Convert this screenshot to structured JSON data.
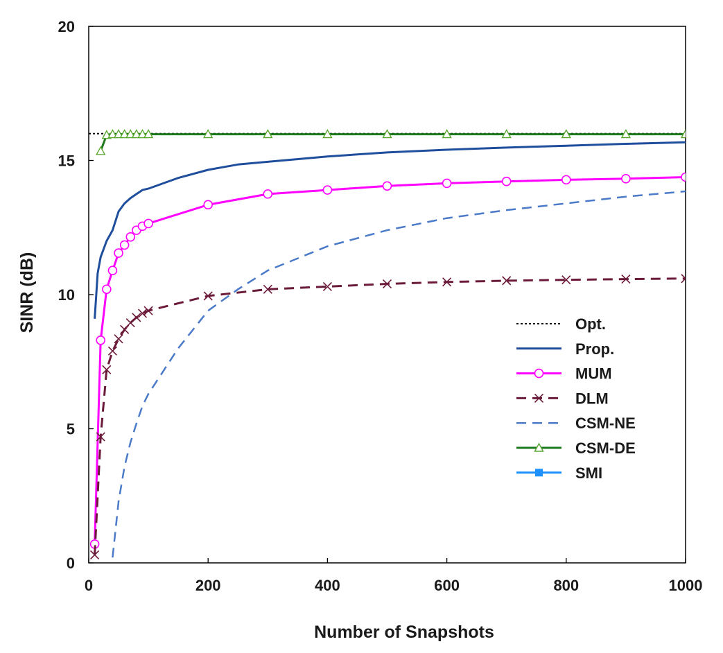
{
  "chart_data": {
    "type": "line",
    "title": "",
    "xlabel": "Number of Snapshots",
    "ylabel": "SINR (dB)",
    "xlim": [
      0,
      1000
    ],
    "ylim": [
      0,
      20
    ],
    "xticks": [
      0,
      200,
      400,
      600,
      800,
      1000
    ],
    "yticks": [
      0,
      5,
      10,
      15,
      20
    ],
    "grid": false,
    "legend_position": "bottom-right",
    "series": [
      {
        "name": "Opt.",
        "color": "#000000",
        "dash": "dotted",
        "marker": "none",
        "x": [
          0,
          1000
        ],
        "y": [
          16,
          16
        ]
      },
      {
        "name": "Prop.",
        "color": "#1f4e9c",
        "dash": "solid",
        "marker": "none",
        "x": [
          10,
          15,
          20,
          30,
          40,
          50,
          60,
          70,
          80,
          90,
          100,
          150,
          200,
          250,
          300,
          400,
          500,
          600,
          700,
          800,
          900,
          1000
        ],
        "y": [
          9.1,
          10.8,
          11.4,
          12.0,
          12.4,
          13.1,
          13.4,
          13.6,
          13.75,
          13.9,
          13.95,
          14.35,
          14.65,
          14.85,
          14.95,
          15.15,
          15.3,
          15.4,
          15.48,
          15.55,
          15.62,
          15.68
        ]
      },
      {
        "name": "MUM",
        "color": "#ff00ff",
        "dash": "solid",
        "marker": "circle",
        "x": [
          10,
          20,
          30,
          40,
          50,
          60,
          70,
          80,
          90,
          100,
          200,
          300,
          400,
          500,
          600,
          700,
          800,
          900,
          1000
        ],
        "y": [
          0.7,
          8.3,
          10.2,
          10.9,
          11.55,
          11.85,
          12.15,
          12.4,
          12.55,
          12.65,
          13.35,
          13.75,
          13.9,
          14.05,
          14.15,
          14.22,
          14.28,
          14.32,
          14.38
        ]
      },
      {
        "name": "DLM",
        "color": "#6b1a3a",
        "dash": "dashed",
        "marker": "cross",
        "x": [
          10,
          20,
          30,
          40,
          50,
          60,
          70,
          80,
          90,
          100,
          200,
          300,
          400,
          500,
          600,
          700,
          800,
          900,
          1000
        ],
        "y": [
          0.3,
          4.7,
          7.2,
          7.9,
          8.35,
          8.7,
          8.95,
          9.15,
          9.3,
          9.4,
          9.95,
          10.2,
          10.3,
          10.4,
          10.47,
          10.52,
          10.55,
          10.58,
          10.6
        ]
      },
      {
        "name": "CSM-NE",
        "color": "#4a7ac8",
        "dash": "dashed",
        "marker": "none",
        "x": [
          40,
          50,
          60,
          70,
          80,
          90,
          100,
          150,
          200,
          250,
          300,
          400,
          500,
          600,
          700,
          800,
          900,
          1000
        ],
        "y": [
          0.2,
          2.3,
          3.6,
          4.5,
          5.2,
          5.85,
          6.3,
          8.0,
          9.4,
          10.2,
          10.9,
          11.8,
          12.4,
          12.85,
          13.15,
          13.4,
          13.65,
          13.85
        ]
      },
      {
        "name": "CSM-DE",
        "color": "#1e7a1e",
        "dash": "solid",
        "marker": "triangle",
        "marker_color": "#5aa832",
        "x": [
          20,
          30,
          40,
          50,
          60,
          70,
          80,
          90,
          100,
          200,
          300,
          400,
          500,
          600,
          700,
          800,
          900,
          1000
        ],
        "y": [
          15.35,
          15.95,
          15.98,
          15.98,
          15.98,
          15.98,
          15.98,
          15.98,
          15.98,
          15.98,
          15.98,
          15.98,
          15.98,
          15.98,
          15.98,
          15.98,
          15.98,
          15.98
        ]
      },
      {
        "name": "SMI",
        "color": "#1e90ff",
        "dash": "solid",
        "marker": "square",
        "x": [],
        "y": []
      }
    ]
  }
}
